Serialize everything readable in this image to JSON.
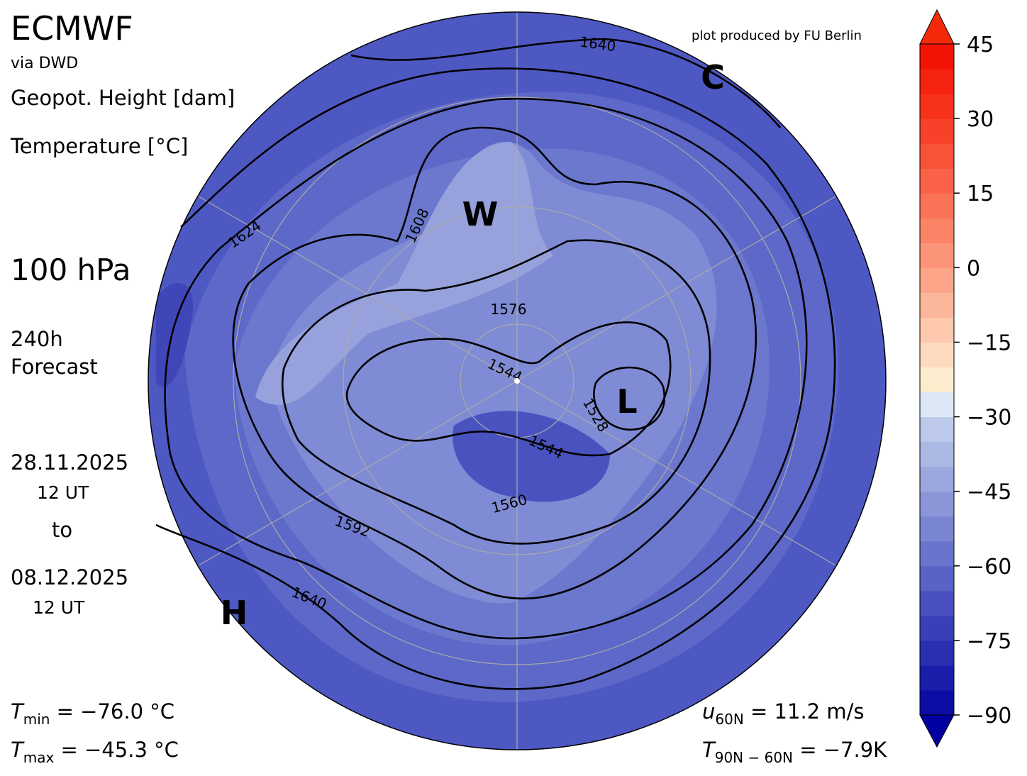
{
  "header": {
    "title": "ECMWF",
    "source": "via DWD",
    "field_1": "Geopot. Height [dam]",
    "field_2": "Temperature [°C]",
    "credit": "plot produced by FU Berlin"
  },
  "info": {
    "level": "100 hPa",
    "lead": "240h",
    "lead_2": "Forecast",
    "start_date": "28.11.2025",
    "start_time": "12 UT",
    "to": "to",
    "end_date": "08.12.2025",
    "end_time": "12 UT"
  },
  "stats": {
    "tmin": {
      "symbol": "T",
      "sub": "min",
      "text": " =  −76.0 °C"
    },
    "tmax": {
      "symbol": "T",
      "sub": "max",
      "text": " =  −45.3 °C"
    },
    "u60": {
      "symbol": "u",
      "sub": "60N",
      "text": " = 11.2 m/s"
    },
    "t9060": {
      "symbol": "T",
      "sub": "90N − 60N",
      "text": " = −7.9K"
    }
  },
  "markers": [
    "W",
    "L",
    "H",
    "C"
  ],
  "contours": [
    {
      "label": 1640
    },
    {
      "label": 1624
    },
    {
      "label": 1608
    },
    {
      "label": 1576
    },
    {
      "label": 1544
    },
    {
      "label": 1528
    },
    {
      "label": 1544
    },
    {
      "label": 1560
    },
    {
      "label": 1592
    },
    {
      "label": 1640
    }
  ],
  "colorbar": {
    "lim": [
      -90,
      45
    ],
    "ticks": [
      {
        "value": -90,
        "label": "−90"
      },
      {
        "value": -75,
        "label": "−75"
      },
      {
        "value": -60,
        "label": "−60"
      },
      {
        "value": -45,
        "label": "−45"
      },
      {
        "value": -30,
        "label": "−30"
      },
      {
        "value": -15,
        "label": "−15"
      },
      0,
      15,
      30,
      45
    ],
    "colors": [
      "#0d0da6",
      "#1b1dab",
      "#2a2eb1",
      "#3a3fb8",
      "#4a50bf",
      "#5a62c6",
      "#6a74cc",
      "#7a85d2",
      "#8a96d8",
      "#9ba7de",
      "#acb8e4",
      "#bdc9ea",
      "#dde8f6",
      "#fdebcd",
      "#fddac0",
      "#fdc8ab",
      "#fcb79a",
      "#fca588",
      "#fb9478",
      "#fb8467",
      "#fa7356",
      "#f96246",
      "#f85237",
      "#f74129",
      "#f6321b",
      "#f5230f",
      "#f41405"
    ],
    "under": "#0000a0",
    "over": "#f42a0a"
  }
}
